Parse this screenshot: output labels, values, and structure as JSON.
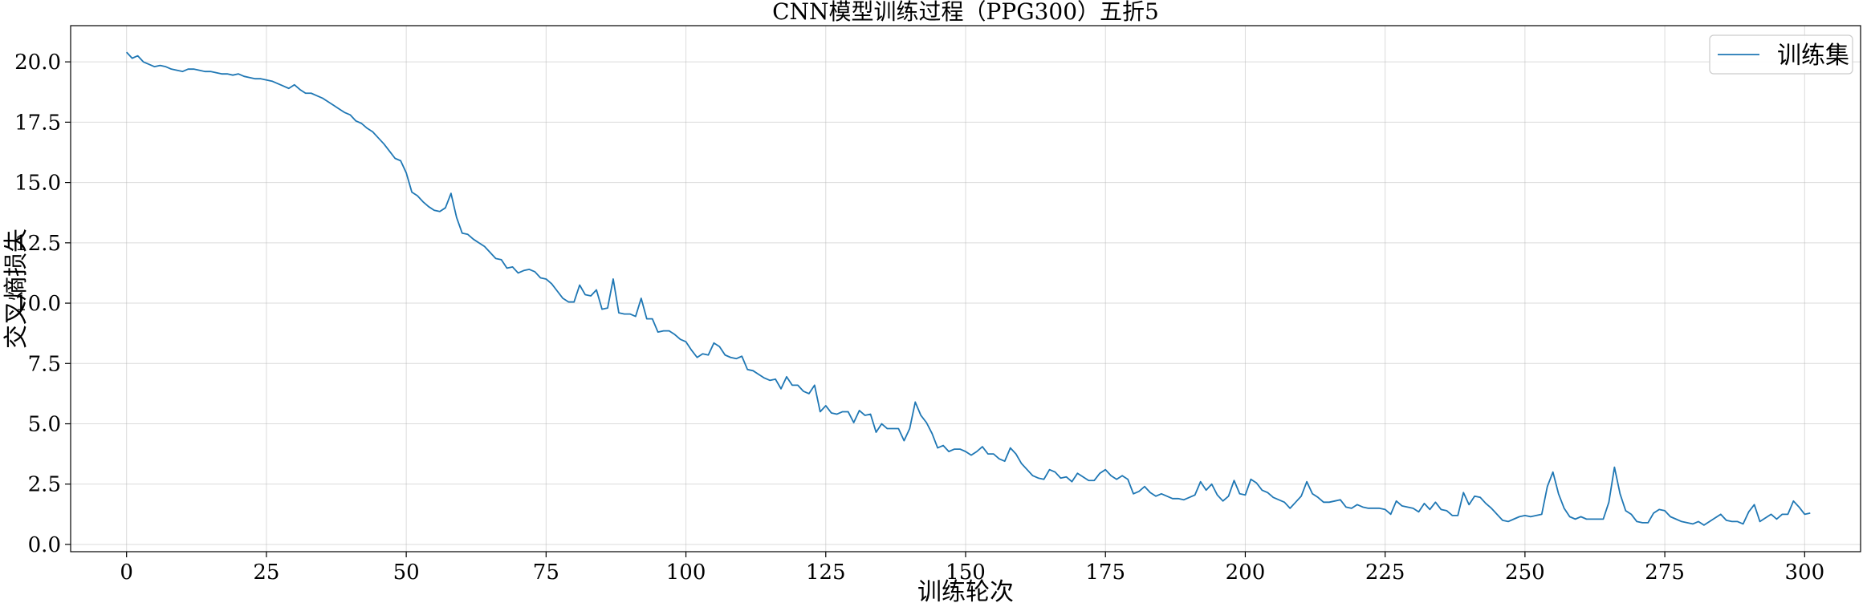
{
  "chart_data": {
    "type": "line",
    "title": "CNN模型训练过程（PPG300）五折5",
    "xlabel": "训练轮次",
    "ylabel": "交叉熵损失",
    "xlim": [
      -10,
      310
    ],
    "ylim": [
      -0.3,
      21.5
    ],
    "xticks": [
      0,
      25,
      50,
      75,
      100,
      125,
      150,
      175,
      200,
      225,
      250,
      275,
      300
    ],
    "xtick_labels": [
      "0",
      "25",
      "50",
      "75",
      "100",
      "125",
      "150",
      "175",
      "200",
      "225",
      "250",
      "275",
      "300"
    ],
    "yticks": [
      0.0,
      2.5,
      5.0,
      7.5,
      10.0,
      12.5,
      15.0,
      17.5,
      20.0
    ],
    "ytick_labels": [
      "0.0",
      "2.5",
      "5.0",
      "7.5",
      "10.0",
      "12.5",
      "15.0",
      "17.5",
      "20.0"
    ],
    "grid": true,
    "legend_position": "upper right",
    "series": [
      {
        "name": "训练集",
        "color": "#1f77b4",
        "x_start": 0,
        "x_step": 1,
        "values": [
          20.4,
          20.15,
          20.25,
          20.0,
          19.9,
          19.8,
          19.85,
          19.8,
          19.7,
          19.65,
          19.6,
          19.7,
          19.7,
          19.65,
          19.6,
          19.6,
          19.55,
          19.5,
          19.5,
          19.45,
          19.5,
          19.4,
          19.35,
          19.3,
          19.3,
          19.25,
          19.2,
          19.1,
          19.0,
          18.9,
          19.05,
          18.85,
          18.7,
          18.7,
          18.6,
          18.5,
          18.35,
          18.2,
          18.05,
          17.9,
          17.8,
          17.55,
          17.45,
          17.25,
          17.1,
          16.85,
          16.6,
          16.3,
          16.0,
          15.9,
          15.4,
          14.6,
          14.45,
          14.2,
          14.0,
          13.85,
          13.8,
          13.95,
          14.55,
          13.55,
          12.9,
          12.85,
          12.65,
          12.5,
          12.35,
          12.1,
          11.85,
          11.8,
          11.45,
          11.5,
          11.25,
          11.35,
          11.4,
          11.3,
          11.05,
          11.0,
          10.8,
          10.5,
          10.2,
          10.05,
          10.05,
          10.75,
          10.35,
          10.3,
          10.55,
          9.75,
          9.8,
          11.0,
          9.6,
          9.55,
          9.55,
          9.45,
          10.2,
          9.35,
          9.35,
          8.8,
          8.85,
          8.85,
          8.7,
          8.5,
          8.4,
          8.05,
          7.75,
          7.9,
          7.85,
          8.35,
          8.2,
          7.85,
          7.75,
          7.7,
          7.8,
          7.25,
          7.2,
          7.05,
          6.9,
          6.8,
          6.85,
          6.45,
          6.95,
          6.6,
          6.6,
          6.35,
          6.25,
          6.6,
          5.5,
          5.75,
          5.45,
          5.4,
          5.5,
          5.5,
          5.05,
          5.55,
          5.35,
          5.4,
          4.65,
          5.0,
          4.8,
          4.8,
          4.8,
          4.3,
          4.8,
          5.9,
          5.35,
          5.05,
          4.6,
          4.0,
          4.1,
          3.85,
          3.95,
          3.95,
          3.85,
          3.7,
          3.85,
          4.05,
          3.75,
          3.75,
          3.55,
          3.45,
          4.0,
          3.75,
          3.35,
          3.1,
          2.85,
          2.75,
          2.7,
          3.1,
          3.0,
          2.75,
          2.8,
          2.6,
          2.95,
          2.8,
          2.65,
          2.65,
          2.95,
          3.1,
          2.85,
          2.7,
          2.85,
          2.7,
          2.1,
          2.2,
          2.4,
          2.15,
          2.0,
          2.1,
          2.0,
          1.9,
          1.9,
          1.85,
          1.95,
          2.05,
          2.6,
          2.25,
          2.5,
          2.05,
          1.8,
          2.0,
          2.65,
          2.1,
          2.05,
          2.7,
          2.55,
          2.25,
          2.15,
          1.95,
          1.85,
          1.75,
          1.5,
          1.75,
          2.0,
          2.6,
          2.1,
          1.95,
          1.75,
          1.75,
          1.8,
          1.85,
          1.55,
          1.5,
          1.65,
          1.55,
          1.5,
          1.5,
          1.5,
          1.45,
          1.25,
          1.8,
          1.6,
          1.55,
          1.5,
          1.35,
          1.7,
          1.45,
          1.75,
          1.45,
          1.4,
          1.2,
          1.2,
          2.15,
          1.65,
          2.0,
          1.95,
          1.7,
          1.5,
          1.25,
          1.0,
          0.95,
          1.05,
          1.15,
          1.2,
          1.15,
          1.2,
          1.25,
          2.4,
          3.0,
          2.1,
          1.5,
          1.15,
          1.05,
          1.15,
          1.05,
          1.05,
          1.05,
          1.05,
          1.75,
          3.2,
          2.1,
          1.4,
          1.25,
          0.95,
          0.9,
          0.9,
          1.3,
          1.45,
          1.4,
          1.15,
          1.05,
          0.95,
          0.9,
          0.85,
          0.95,
          0.8,
          0.95,
          1.1,
          1.25,
          1.0,
          0.95,
          0.95,
          0.85,
          1.35,
          1.65,
          0.95,
          1.1,
          1.25,
          1.05,
          1.25,
          1.25,
          1.8,
          1.55,
          1.25,
          1.3
        ]
      }
    ]
  }
}
